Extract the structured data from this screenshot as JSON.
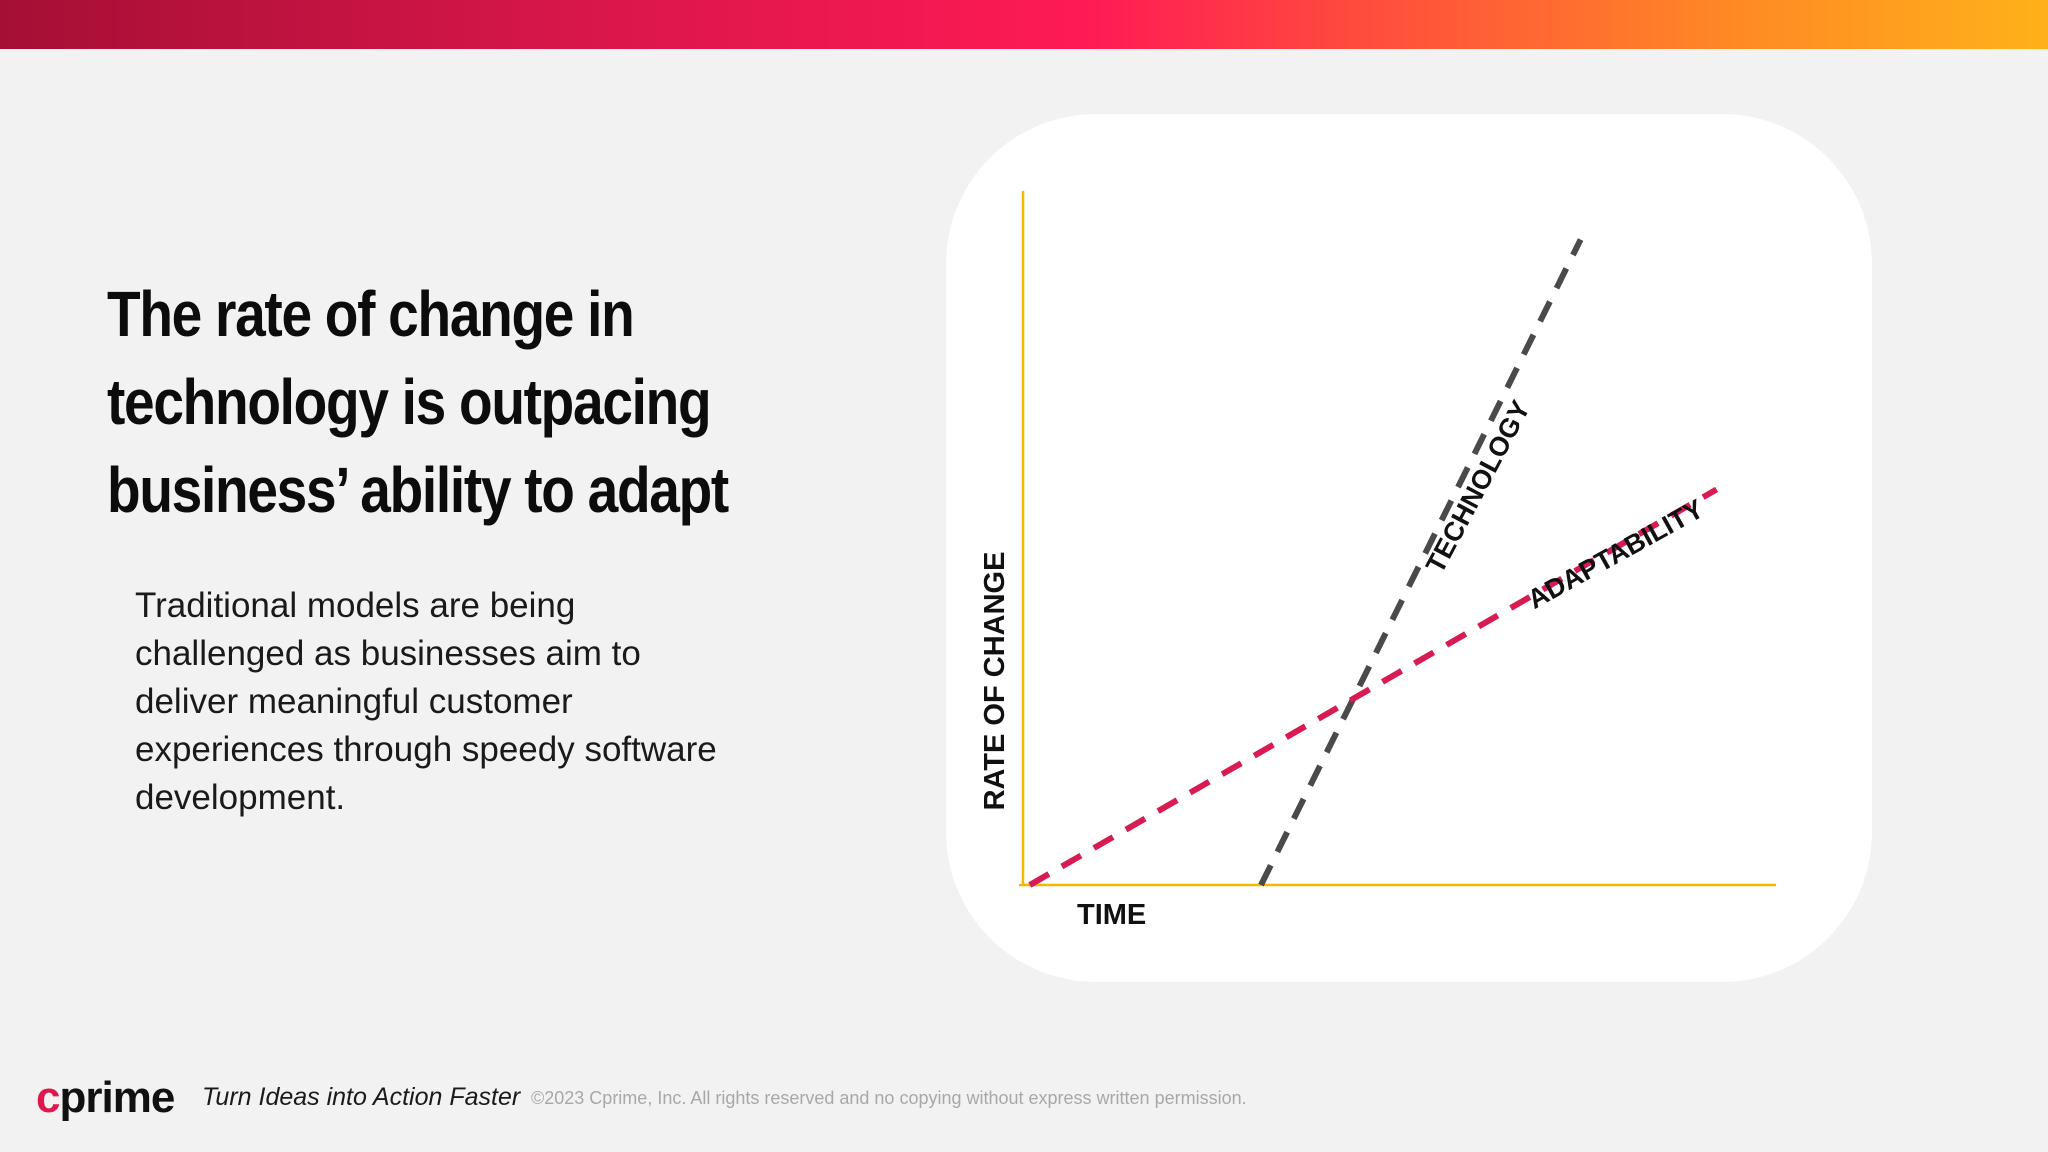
{
  "slide": {
    "headline": "The rate of change in technology is outpacing business’ ability to adapt",
    "body": "Traditional models are being challenged as businesses aim to deliver meaningful customer experiences through speedy software development."
  },
  "chart_data": {
    "type": "line",
    "xlabel": "TIME",
    "ylabel": "RATE OF CHANGE",
    "xlim": [
      0,
      100
    ],
    "ylim": [
      0,
      100
    ],
    "grid": false,
    "legend": "none",
    "series": [
      {
        "name": "TECHNOLOGY",
        "x": [
          35,
          82
        ],
        "y": [
          0,
          93
        ],
        "color": "#4a4a4a",
        "style": "dashed"
      },
      {
        "name": "ADAPTABILITY",
        "x": [
          1,
          102
        ],
        "y": [
          0,
          57
        ],
        "color": "#d81b52",
        "style": "dashed"
      }
    ],
    "axis_color": "#f5b800"
  },
  "footer": {
    "logo_c": "c",
    "logo_rest": "prime",
    "tagline": "Turn Ideas into Action Faster",
    "copyright": "©2023 Cprime, Inc. All rights reserved and no copying without express written permission."
  }
}
